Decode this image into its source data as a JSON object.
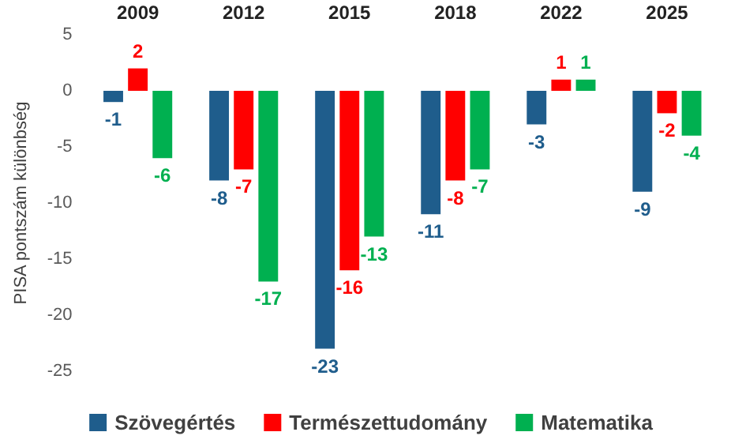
{
  "chart_data": {
    "type": "bar",
    "ylabel": "PISA pontszám különbség",
    "categories": [
      "2009",
      "2012",
      "2015",
      "2018",
      "2022",
      "2025"
    ],
    "series": [
      {
        "name": "Szövegértés",
        "color": "#1f5d8c",
        "values": [
          -1,
          -8,
          -23,
          -11,
          -3,
          -9
        ]
      },
      {
        "name": "Természettudomány",
        "color": "#ff0000",
        "values": [
          2,
          -7,
          -16,
          -8,
          1,
          -2
        ]
      },
      {
        "name": "Matematika",
        "color": "#00b050",
        "values": [
          -6,
          -17,
          -13,
          -7,
          1,
          -4
        ]
      }
    ],
    "ylim": [
      -25,
      5
    ],
    "yticks": [
      -25,
      -20,
      -15,
      -10,
      -5,
      0,
      5
    ],
    "data_labels": true,
    "grid": false,
    "legend": "bottom"
  }
}
